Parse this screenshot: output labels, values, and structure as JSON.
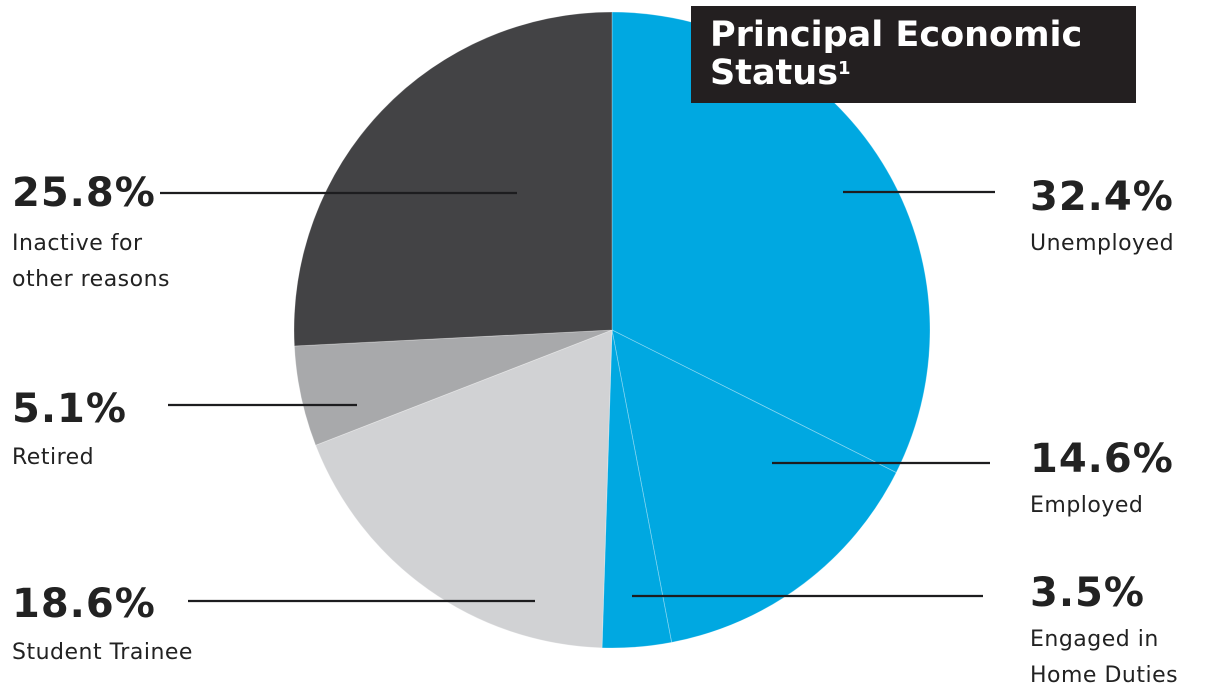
{
  "title": {
    "text": "Principal Economic Status",
    "footnote": "1"
  },
  "colors": {
    "blue": "#00a8e1",
    "dark": "#434345",
    "mid_gray": "#a8a9ab",
    "light_gray": "#d1d2d4",
    "title_bg": "#231f20"
  },
  "chart_data": {
    "type": "pie",
    "title": "Principal Economic Status",
    "slices": [
      {
        "name": "Unemployed",
        "value": 32.4,
        "label": "32.4%",
        "color": "#00a8e1",
        "lines": [
          "Unemployed"
        ],
        "side": "right"
      },
      {
        "name": "Employed",
        "value": 14.6,
        "label": "14.6%",
        "color": "#00a8e1",
        "lines": [
          "Employed"
        ],
        "side": "right"
      },
      {
        "name": "Engaged in Home Duties",
        "value": 3.5,
        "label": "3.5%",
        "color": "#00a8e1",
        "lines": [
          "Engaged in",
          "Home Duties"
        ],
        "side": "right"
      },
      {
        "name": "Student Trainee",
        "value": 18.6,
        "label": "18.6%",
        "color": "#d1d2d4",
        "lines": [
          "Student Trainee"
        ],
        "side": "left"
      },
      {
        "name": "Retired",
        "value": 5.1,
        "label": "5.1%",
        "color": "#a8a9ab",
        "lines": [
          "Retired"
        ],
        "side": "left"
      },
      {
        "name": "Inactive for other reasons",
        "value": 25.8,
        "label": "25.8%",
        "color": "#434345",
        "lines": [
          "Inactive for",
          "other reasons"
        ],
        "side": "left"
      }
    ],
    "start": "12 o'clock",
    "direction": "clockwise"
  }
}
